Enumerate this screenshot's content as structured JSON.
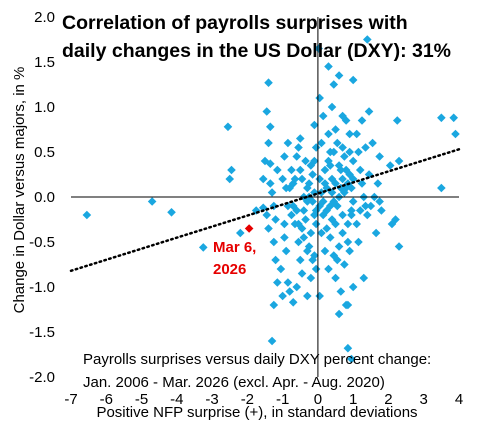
{
  "chart_data": {
    "type": "scatter",
    "title_line1": "Correlation of payrolls surprises with",
    "title_line2": "daily changes in the US Dollar (DXY): 31%",
    "xlabel": "Positive NFP surprise (+), in standard deviations",
    "ylabel": "Change in Dollar versus majors, in %",
    "note_line1": "Payrolls surprises versus daily DXY percent change:",
    "note_line2": "Jan. 2006 - Mar. 2026 (excl. Apr. - Aug. 2020)",
    "xlim": [
      -7,
      4
    ],
    "ylim": [
      -2.0,
      2.0
    ],
    "xticks": [
      -7,
      -6,
      -5,
      -4,
      -3,
      -2,
      -1,
      0,
      1,
      2,
      3,
      4
    ],
    "xtick_labels": [
      "-7",
      "-6",
      "-5",
      "-4",
      "-3",
      "-2",
      "-1",
      "0",
      "1",
      "2",
      "3",
      "4"
    ],
    "yticks": [
      -2.0,
      -1.5,
      -1.0,
      -0.5,
      0.0,
      0.5,
      1.0,
      1.5,
      2.0
    ],
    "ytick_labels": [
      "-2.0",
      "-1.5",
      "-1.0",
      "-0.5",
      "0.0",
      "0.5",
      "1.0",
      "1.5",
      "2.0"
    ],
    "grid": false,
    "colors": {
      "points": "#1aa7e0",
      "highlight": "#e60000",
      "trend": "#000000",
      "axis": "#000000"
    },
    "trendline": {
      "style": "dotted",
      "x": [
        -7,
        4
      ],
      "y": [
        -0.82,
        0.53
      ]
    },
    "highlight": {
      "label_line1": "Mar 6,",
      "label_line2": "2026",
      "x": -1.95,
      "y": -0.35
    },
    "points": [
      [
        -6.55,
        -0.2
      ],
      [
        -4.7,
        -0.05
      ],
      [
        -4.15,
        -0.17
      ],
      [
        -3.25,
        -0.56
      ],
      [
        -2.55,
        0.78
      ],
      [
        -2.45,
        0.3
      ],
      [
        -2.5,
        0.2
      ],
      [
        -2.2,
        -0.4
      ],
      [
        -1.75,
        -0.15
      ],
      [
        -1.55,
        -0.12
      ],
      [
        -1.45,
        -0.2
      ],
      [
        -1.4,
        -0.35
      ],
      [
        -1.25,
        -0.5
      ],
      [
        -1.2,
        -0.7
      ],
      [
        -1.15,
        -0.95
      ],
      [
        -1.05,
        -0.8
      ],
      [
        -1.0,
        -1.1
      ],
      [
        -0.95,
        -0.3
      ],
      [
        -1.3,
        -1.6
      ],
      [
        -1.35,
        0.78
      ],
      [
        -1.4,
        0.6
      ],
      [
        -1.45,
        0.95
      ],
      [
        -1.5,
        0.4
      ],
      [
        -1.55,
        0.2
      ],
      [
        -1.25,
        -1.2
      ],
      [
        -1.4,
        1.27
      ],
      [
        -1.35,
        0.37
      ],
      [
        -1.35,
        0.15
      ],
      [
        -1.3,
        0.05
      ],
      [
        -1.25,
        -0.1
      ],
      [
        -0.95,
        0.45
      ],
      [
        -1.15,
        0.3
      ],
      [
        -1.2,
        -0.25
      ],
      [
        -0.85,
        0.6
      ],
      [
        -0.8,
        0.1
      ],
      [
        -0.75,
        0.3
      ],
      [
        -0.7,
        -0.1
      ],
      [
        -0.65,
        0.2
      ],
      [
        -0.6,
        0.45
      ],
      [
        -0.55,
        -0.5
      ],
      [
        -0.5,
        0.65
      ],
      [
        -0.45,
        -0.35
      ],
      [
        -0.4,
        0.0
      ],
      [
        -0.35,
        0.4
      ],
      [
        -0.3,
        -0.6
      ],
      [
        -0.25,
        0.15
      ],
      [
        -0.2,
        -0.9
      ],
      [
        -0.15,
        0.25
      ],
      [
        -0.1,
        0.4
      ],
      [
        -0.05,
        -0.3
      ],
      [
        -0.9,
        -0.6
      ],
      [
        -0.85,
        -0.95
      ],
      [
        -0.8,
        -1.05
      ],
      [
        -0.7,
        -1.17
      ],
      [
        -0.6,
        -1.0
      ],
      [
        -0.5,
        -0.7
      ],
      [
        -0.45,
        -0.85
      ],
      [
        -0.4,
        -0.45
      ],
      [
        -0.35,
        -0.25
      ],
      [
        -0.3,
        -0.05
      ],
      [
        -0.25,
        -0.55
      ],
      [
        -0.2,
        -0.4
      ],
      [
        -0.15,
        -0.7
      ],
      [
        -0.1,
        -0.2
      ],
      [
        -0.05,
        -0.15
      ],
      [
        -0.55,
        0.55
      ],
      [
        -0.5,
        0.3
      ],
      [
        -0.45,
        0.2
      ],
      [
        -0.7,
        0.15
      ],
      [
        -0.75,
        -0.2
      ],
      [
        -0.65,
        -0.3
      ],
      [
        -0.6,
        -0.15
      ],
      [
        -0.9,
        0.1
      ],
      [
        -1.0,
        0.2
      ],
      [
        -0.85,
        -0.1
      ],
      [
        -0.95,
        -0.45
      ],
      [
        -0.1,
        0.8
      ],
      [
        -0.05,
        0.55
      ],
      [
        -0.2,
        0.35
      ],
      [
        -0.25,
        0.0
      ],
      [
        -0.3,
        0.1
      ],
      [
        -0.15,
        -0.05
      ],
      [
        -0.1,
        0.05
      ],
      [
        -0.1,
        -0.65
      ],
      [
        -0.05,
        -0.8
      ],
      [
        -0.3,
        -1.1
      ],
      [
        -0.55,
        -0.3
      ],
      [
        -0.4,
        -0.15
      ],
      [
        0.05,
        1.1
      ],
      [
        0.1,
        0.6
      ],
      [
        0.15,
        0.9
      ],
      [
        0.2,
        0.3
      ],
      [
        0.25,
        0.1
      ],
      [
        0.3,
        0.7
      ],
      [
        0.35,
        -0.1
      ],
      [
        0.4,
        0.2
      ],
      [
        0.45,
        0.5
      ],
      [
        0.5,
        -0.3
      ],
      [
        0.55,
        0.6
      ],
      [
        0.6,
        0.0
      ],
      [
        0.65,
        0.3
      ],
      [
        0.7,
        -0.2
      ],
      [
        0.75,
        0.45
      ],
      [
        0.8,
        0.1
      ],
      [
        0.85,
        -0.5
      ],
      [
        0.9,
        0.25
      ],
      [
        0.95,
        -0.15
      ],
      [
        1.0,
        0.4
      ],
      [
        0.05,
        -0.1
      ],
      [
        0.1,
        -0.4
      ],
      [
        0.15,
        -0.2
      ],
      [
        0.2,
        -0.6
      ],
      [
        0.25,
        -0.35
      ],
      [
        0.3,
        -0.8
      ],
      [
        0.35,
        -0.45
      ],
      [
        0.4,
        -0.25
      ],
      [
        0.45,
        -0.65
      ],
      [
        0.5,
        -0.9
      ],
      [
        0.55,
        -0.7
      ],
      [
        0.6,
        -0.55
      ],
      [
        0.65,
        -1.05
      ],
      [
        0.7,
        -0.4
      ],
      [
        0.75,
        -0.75
      ],
      [
        0.8,
        -1.2
      ],
      [
        0.85,
        -0.3
      ],
      [
        0.9,
        -0.6
      ],
      [
        0.95,
        -0.2
      ],
      [
        1.0,
        -0.05
      ],
      [
        0.05,
        0.2
      ],
      [
        0.1,
        0.05
      ],
      [
        0.15,
        -0.05
      ],
      [
        0.2,
        0.15
      ],
      [
        0.25,
        -0.15
      ],
      [
        0.3,
        0.4
      ],
      [
        0.35,
        0.35
      ],
      [
        0.4,
        0.05
      ],
      [
        0.45,
        -0.05
      ],
      [
        0.5,
        0.15
      ],
      [
        0.55,
        -0.1
      ],
      [
        0.6,
        0.35
      ],
      [
        0.65,
        0.1
      ],
      [
        0.7,
        0.2
      ],
      [
        0.75,
        0.05
      ],
      [
        0.8,
        0.3
      ],
      [
        0.85,
        0.15
      ],
      [
        0.9,
        0.5
      ],
      [
        0.95,
        0.1
      ],
      [
        1.0,
        0.2
      ],
      [
        0.02,
        1.65
      ],
      [
        0.3,
        1.45
      ],
      [
        0.6,
        1.35
      ],
      [
        1.0,
        1.3
      ],
      [
        1.4,
        1.75
      ],
      [
        1.45,
        0.95
      ],
      [
        0.7,
        0.9
      ],
      [
        0.45,
        1.25
      ],
      [
        0.4,
        1.0
      ],
      [
        0.8,
        0.85
      ],
      [
        1.1,
        0.7
      ],
      [
        1.15,
        0.5
      ],
      [
        1.2,
        0.3
      ],
      [
        1.25,
        0.15
      ],
      [
        1.3,
        0.0
      ],
      [
        1.35,
        -0.1
      ],
      [
        1.1,
        -0.3
      ],
      [
        1.15,
        -0.5
      ],
      [
        1.2,
        -0.15
      ],
      [
        1.4,
        -0.2
      ],
      [
        1.5,
        -0.1
      ],
      [
        1.6,
        0.0
      ],
      [
        1.7,
        0.15
      ],
      [
        1.75,
        -0.05
      ],
      [
        1.8,
        -0.15
      ],
      [
        1.55,
        0.6
      ],
      [
        1.75,
        0.45
      ],
      [
        2.05,
        0.35
      ],
      [
        2.25,
        0.85
      ],
      [
        2.3,
        0.4
      ],
      [
        2.2,
        -0.25
      ],
      [
        3.5,
        0.88
      ],
      [
        3.85,
        0.88
      ],
      [
        3.9,
        0.7
      ],
      [
        3.5,
        0.1
      ],
      [
        0.85,
        -1.68
      ],
      [
        0.05,
        -1.1
      ],
      [
        0.95,
        -1.8
      ],
      [
        0.85,
        -1.2
      ],
      [
        0.6,
        -1.3
      ],
      [
        1.0,
        -1.0
      ],
      [
        1.65,
        -0.4
      ],
      [
        2.1,
        -0.3
      ],
      [
        2.3,
        -0.55
      ],
      [
        1.3,
        -0.9
      ],
      [
        0.9,
        0.7
      ],
      [
        1.25,
        0.85
      ],
      [
        1.35,
        0.55
      ],
      [
        1.45,
        0.25
      ],
      [
        0.7,
        0.55
      ],
      [
        0.5,
        0.75
      ],
      [
        0.35,
        0.5
      ]
    ]
  }
}
